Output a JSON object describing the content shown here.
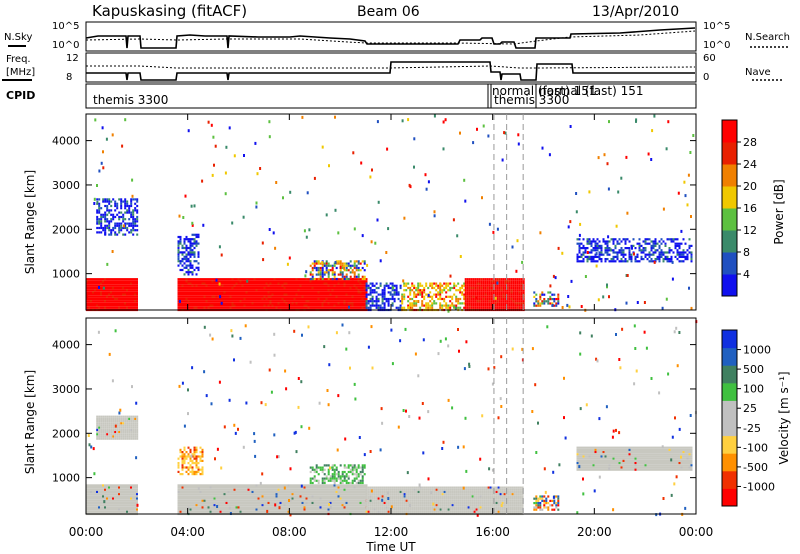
{
  "header": {
    "station": "Kapuskasing (fitACF)",
    "beam": "Beam 06",
    "date": "13/Apr/2010"
  },
  "noise_panel": {
    "left_label": "N.Sky",
    "right_label": "N.Search",
    "left_ticks": [
      "10^5",
      "10^0"
    ],
    "right_ticks": [
      "10^5",
      "10^0"
    ]
  },
  "freq_panel": {
    "left_label_1": "Freq.",
    "left_label_2": "[MHz]",
    "right_label": "Nave",
    "left_ticks": [
      "12",
      "8"
    ],
    "right_ticks": [
      "60",
      "0"
    ]
  },
  "cpid_panel": {
    "label": "CPID",
    "programs": [
      {
        "name": "themis 3300",
        "start_hour": 0.1
      },
      {
        "name": "normal (fast) 151",
        "start_hour": 16.05
      },
      {
        "name": "themis 3300",
        "start_hour": 16.1
      },
      {
        "name": "normal (fast) 151",
        "start_hour": 17.3
      }
    ]
  },
  "x_axis": {
    "label": "Time UT",
    "ticks": [
      "00:00",
      "04:00",
      "08:00",
      "12:00",
      "16:00",
      "20:00",
      "00:00"
    ],
    "tick_hours": [
      0,
      4,
      8,
      12,
      16,
      20,
      24
    ]
  },
  "y_axis": {
    "label": "Slant Range [km]",
    "ticks": [
      "1000",
      "2000",
      "3000",
      "4000"
    ],
    "tick_values": [
      1000,
      2000,
      3000,
      4000
    ],
    "ylim": [
      180,
      4600
    ]
  },
  "colors": {
    "ground_scatter": "#c8c8c0",
    "power_scale": [
      "#1010ee",
      "#2050c0",
      "#3a8a6a",
      "#5cc040",
      "#f0c800",
      "#f08000",
      "#e82000",
      "#ff0000"
    ],
    "velocity_scale": [
      "#ff0000",
      "#f03000",
      "#ff9000",
      "#ffd040",
      "#c0c0c0",
      "#c0c0c0",
      "#40c040",
      "#408060",
      "#2060c0",
      "#1030e0"
    ]
  },
  "power_colorbar": {
    "label": "Power [dB]",
    "ticks": [
      "28",
      "24",
      "20",
      "16",
      "12",
      "8",
      "4"
    ]
  },
  "velocity_colorbar": {
    "label": "Velocity [m s⁻¹]",
    "ticks": [
      "1000",
      "500",
      "100",
      "25",
      "-25",
      "-100",
      "-500",
      "-1000"
    ]
  },
  "chart_data": [
    {
      "type": "heatmap",
      "name": "power",
      "x_unit": "hours UT",
      "y_unit": "km",
      "xlim": [
        0,
        24
      ],
      "ylim": [
        180,
        4600
      ],
      "regions": [
        {
          "t0": 0.0,
          "t1": 2.0,
          "r0": 200,
          "r1": 900,
          "level": "high"
        },
        {
          "t0": 3.6,
          "t1": 11.0,
          "r0": 200,
          "r1": 900,
          "level": "high"
        },
        {
          "t0": 11.0,
          "t1": 12.4,
          "r0": 200,
          "r1": 800,
          "level": "low"
        },
        {
          "t0": 12.4,
          "t1": 14.9,
          "r0": 200,
          "r1": 800,
          "level": "mid"
        },
        {
          "t0": 14.9,
          "t1": 17.2,
          "r0": 200,
          "r1": 900,
          "level": "high"
        },
        {
          "t0": 0.4,
          "t1": 2.0,
          "r0": 1900,
          "r1": 2700,
          "level": "low"
        },
        {
          "t0": 3.6,
          "t1": 4.4,
          "r0": 1000,
          "r1": 1900,
          "level": "low"
        },
        {
          "t0": 8.8,
          "t1": 11.0,
          "r0": 900,
          "r1": 1300,
          "level": "mix"
        },
        {
          "t0": 19.3,
          "t1": 23.8,
          "r0": 1300,
          "r1": 1800,
          "level": "low"
        },
        {
          "t0": 17.6,
          "t1": 18.6,
          "r0": 300,
          "r1": 600,
          "level": "mix"
        }
      ]
    },
    {
      "type": "heatmap",
      "name": "velocity",
      "x_unit": "hours UT",
      "y_unit": "km",
      "xlim": [
        0,
        24
      ],
      "ylim": [
        180,
        4600
      ],
      "regions": [
        {
          "t0": 0.0,
          "t1": 2.0,
          "r0": 200,
          "r1": 850,
          "level": "ground"
        },
        {
          "t0": 3.6,
          "t1": 11.0,
          "r0": 200,
          "r1": 850,
          "level": "ground"
        },
        {
          "t0": 11.0,
          "t1": 17.2,
          "r0": 200,
          "r1": 800,
          "level": "ground"
        },
        {
          "t0": 0.4,
          "t1": 2.0,
          "r0": 1900,
          "r1": 2400,
          "level": "ground"
        },
        {
          "t0": 3.6,
          "t1": 4.6,
          "r0": 1100,
          "r1": 1700,
          "level": "neg"
        },
        {
          "t0": 8.8,
          "t1": 11.0,
          "r0": 900,
          "r1": 1300,
          "level": "pos"
        },
        {
          "t0": 19.3,
          "t1": 23.8,
          "r0": 1200,
          "r1": 1700,
          "level": "ground"
        },
        {
          "t0": 17.6,
          "t1": 18.6,
          "r0": 300,
          "r1": 600,
          "level": "mix"
        }
      ]
    }
  ]
}
